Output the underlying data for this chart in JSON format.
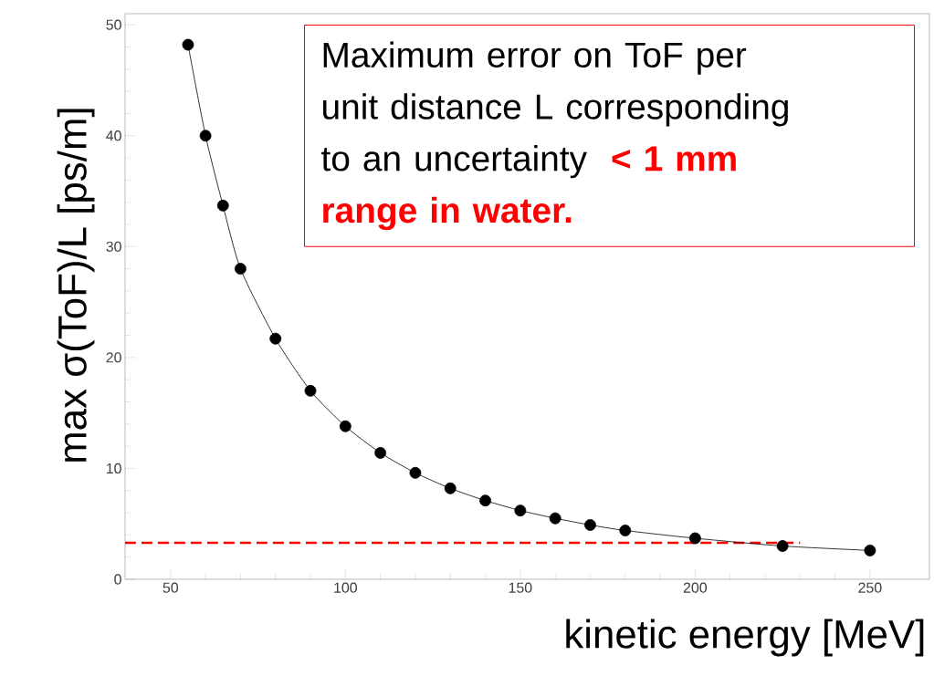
{
  "chart_data": {
    "type": "line",
    "xlabel": "kinetic energy [MeV]",
    "ylabel": "max σ(ToF)/L   [ps/m]",
    "annotations": [
      "Maximum error on ToF per unit distance L corresponding to an uncertainty",
      "< 1 mm range in water."
    ],
    "series": [
      {
        "color": "#000000",
        "marker": "circle",
        "line_style": "solid",
        "x": [
          55,
          60,
          65,
          70,
          80,
          90,
          100,
          110,
          120,
          130,
          140,
          150,
          160,
          170,
          180,
          200,
          225,
          250
        ],
        "values": [
          48.2,
          40,
          33.7,
          28,
          21.7,
          17,
          13.8,
          11.4,
          9.6,
          8.2,
          7.1,
          6.2,
          5.5,
          4.9,
          4.4,
          3.7,
          3.0,
          2.6
        ]
      },
      {
        "type": "line",
        "color": "#ff0000",
        "marker": "none",
        "line_style": "dashed",
        "x": [
          37,
          230
        ],
        "values": [
          3.3,
          3.3
        ]
      }
    ],
    "xlim": [
      37,
      267
    ],
    "ylim": [
      0,
      51
    ],
    "xticks": [
      50,
      100,
      150,
      200,
      250
    ],
    "yticks": [
      0,
      10,
      20,
      30,
      40,
      50
    ],
    "grid": false
  }
}
